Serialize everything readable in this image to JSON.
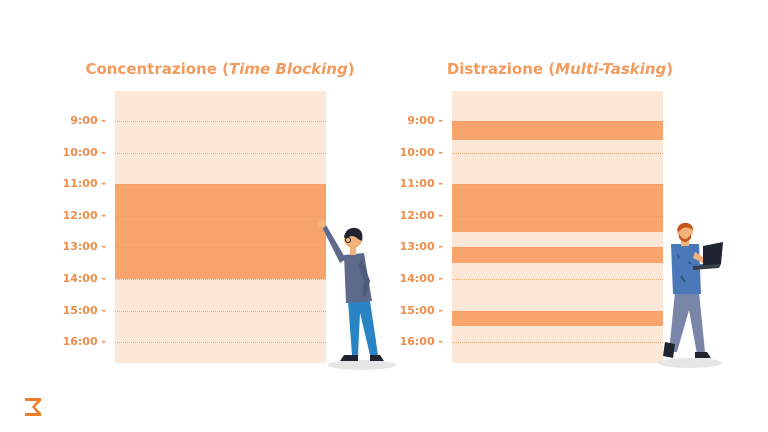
{
  "left_panel": {
    "title_main": "Concentrazione (",
    "title_italic": "Time Blocking",
    "title_end": ")",
    "blocks": [
      [
        11,
        14
      ]
    ]
  },
  "right_panel": {
    "title_main": "Distrazione (",
    "title_italic": "Multi-Tasking",
    "title_end": ")",
    "blocks": [
      [
        9,
        9.6
      ],
      [
        11,
        12.5
      ],
      [
        13,
        13.5
      ],
      [
        15,
        15.5
      ]
    ]
  },
  "hours": [
    {
      "value": 9,
      "label": "9:00 -"
    },
    {
      "value": 10,
      "label": "10:00 -"
    },
    {
      "value": 11,
      "label": "11:00 -"
    },
    {
      "value": 12,
      "label": "12:00 -"
    },
    {
      "value": 13,
      "label": "13:00 -"
    },
    {
      "value": 14,
      "label": "14:00 -"
    },
    {
      "value": 15,
      "label": "15:00 -"
    },
    {
      "value": 16,
      "label": "16:00 -"
    }
  ],
  "colors": {
    "accent": "#f39b5e",
    "column_bg": "#fde7d7",
    "block": "#f7a46d"
  },
  "icons": [
    "hourglass-logo-icon"
  ]
}
